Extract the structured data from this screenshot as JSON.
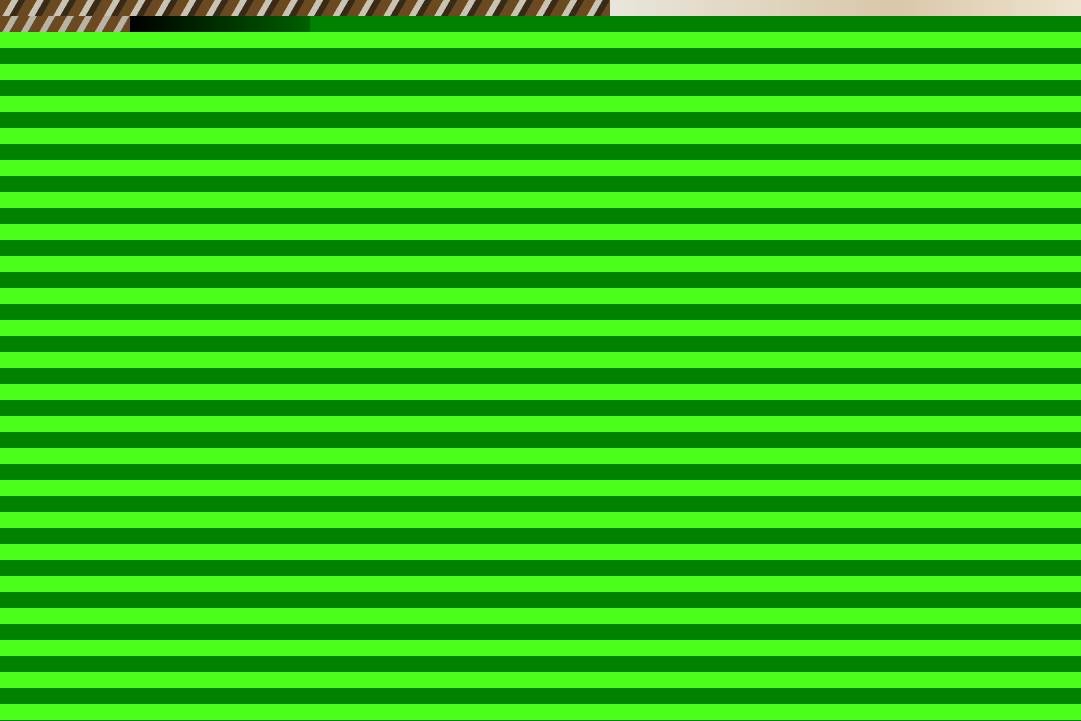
{
  "image": {
    "colors": {
      "dark_stripe": "#008000",
      "bright_stripe": "#4aff1a"
    },
    "photo_strip_icon": "photo-fragment-icon"
  }
}
